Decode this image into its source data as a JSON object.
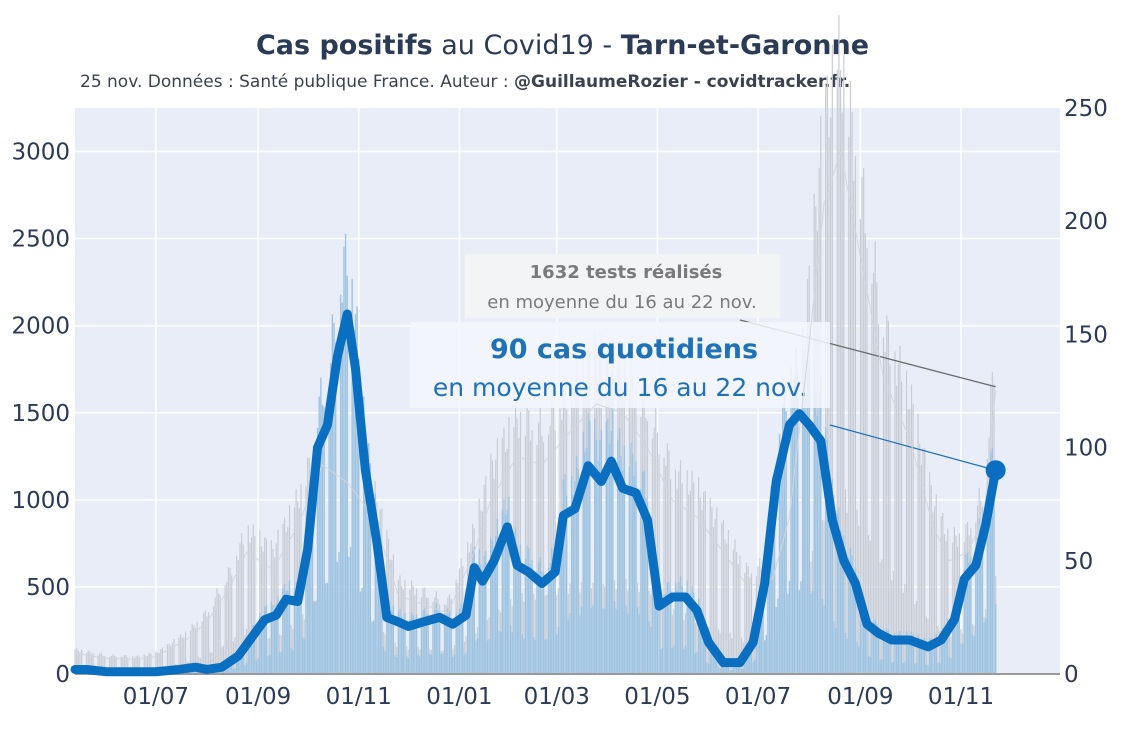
{
  "title": {
    "bold1": "Cas positifs",
    "normal": " au Covid19 - ",
    "bold2": "Tarn-et-Garonne"
  },
  "subtitle": {
    "text": "25 nov. Données : Santé publique France. Auteur : ",
    "bold": "@GuillaumeRozier - covidtracker.fr."
  },
  "annotations": {
    "tests_line1": "1632 tests réalisés",
    "tests_line2": "en moyenne du 16 au 22 nov.",
    "cases_line1": "90 cas quotidiens",
    "cases_line2": "en moyenne du 16 au 22 nov."
  },
  "colors": {
    "plot_bg": "#e8edf7",
    "grid": "#ffffff",
    "cases_line": "#0a6fc1",
    "cases_bars": "#9ec4e2",
    "tests_bars": "#c8ccd4",
    "text": "#2b3b55"
  },
  "chart_data": {
    "type": "line",
    "title": "Cas positifs au Covid19 - Tarn-et-Garonne",
    "x_axis": {
      "type": "date",
      "range": [
        "2020-05-13",
        "2021-12-31"
      ],
      "tick_labels": [
        "01/07",
        "01/09",
        "01/11",
        "01/01",
        "01/03",
        "01/05",
        "01/07",
        "01/09",
        "01/11"
      ],
      "tick_dates": [
        "2020-07-01",
        "2020-09-01",
        "2020-11-01",
        "2021-01-01",
        "2021-03-01",
        "2021-05-01",
        "2021-07-01",
        "2021-09-01",
        "2021-11-01"
      ]
    },
    "y_left": {
      "range": [
        0,
        3250
      ],
      "tick_labels": [
        "0",
        "500",
        "1000",
        "1500",
        "2000",
        "2500",
        "3000"
      ],
      "tick_values": [
        0,
        500,
        1000,
        1500,
        2000,
        2500,
        3000
      ],
      "series": "Tests réalisés (bars)"
    },
    "y_right": {
      "range": [
        0,
        250
      ],
      "tick_labels": [
        "0",
        "50",
        "100",
        "150",
        "200",
        "250"
      ],
      "tick_values": [
        0,
        50,
        100,
        150,
        200,
        250
      ],
      "series": "Cas positifs (line, bars)"
    },
    "grid": true,
    "series": [
      {
        "kind": "tests_7day_avg",
        "axis": "left",
        "x": [
          "2020-05-13",
          "2020-06-01",
          "2020-06-20",
          "2020-07-01",
          "2020-07-20",
          "2020-08-01",
          "2020-08-15",
          "2020-08-25",
          "2020-09-10",
          "2020-09-25",
          "2020-10-10",
          "2020-10-25",
          "2020-11-10",
          "2020-11-25",
          "2020-12-10",
          "2020-12-25",
          "2021-01-10",
          "2021-01-20",
          "2021-02-05",
          "2021-02-20",
          "2021-03-10",
          "2021-03-25",
          "2021-04-10",
          "2021-04-25",
          "2021-05-10",
          "2021-05-25",
          "2021-06-10",
          "2021-06-25",
          "2021-07-10",
          "2021-07-20",
          "2021-08-01",
          "2021-08-10",
          "2021-08-20",
          "2021-09-01",
          "2021-09-15",
          "2021-10-01",
          "2021-10-15",
          "2021-10-25",
          "2021-11-05",
          "2021-11-15",
          "2021-11-22"
        ],
        "y": [
          120,
          90,
          85,
          100,
          200,
          300,
          500,
          700,
          600,
          850,
          1200,
          1100,
          900,
          450,
          400,
          350,
          700,
          1000,
          1250,
          1200,
          1400,
          1550,
          1500,
          1300,
          1000,
          900,
          700,
          500,
          550,
          900,
          1900,
          2700,
          3000,
          2400,
          1700,
          1350,
          850,
          650,
          700,
          900,
          1632
        ]
      },
      {
        "kind": "cases_7day_avg",
        "axis": "right",
        "x": [
          "2020-05-13",
          "2020-05-20",
          "2020-06-01",
          "2020-06-15",
          "2020-07-01",
          "2020-07-15",
          "2020-07-25",
          "2020-08-01",
          "2020-08-10",
          "2020-08-20",
          "2020-08-28",
          "2020-09-05",
          "2020-09-12",
          "2020-09-18",
          "2020-09-25",
          "2020-10-01",
          "2020-10-07",
          "2020-10-13",
          "2020-10-19",
          "2020-10-25",
          "2020-10-30",
          "2020-11-05",
          "2020-11-12",
          "2020-11-18",
          "2020-11-25",
          "2020-12-01",
          "2020-12-10",
          "2020-12-20",
          "2020-12-28",
          "2021-01-05",
          "2021-01-10",
          "2021-01-15",
          "2021-01-22",
          "2021-01-30",
          "2021-02-05",
          "2021-02-12",
          "2021-02-20",
          "2021-02-28",
          "2021-03-05",
          "2021-03-12",
          "2021-03-20",
          "2021-03-28",
          "2021-04-03",
          "2021-04-10",
          "2021-04-18",
          "2021-04-25",
          "2021-05-02",
          "2021-05-10",
          "2021-05-18",
          "2021-05-25",
          "2021-06-01",
          "2021-06-10",
          "2021-06-20",
          "2021-06-28",
          "2021-07-05",
          "2021-07-12",
          "2021-07-20",
          "2021-07-26",
          "2021-08-01",
          "2021-08-08",
          "2021-08-15",
          "2021-08-22",
          "2021-08-29",
          "2021-09-05",
          "2021-09-12",
          "2021-09-20",
          "2021-10-01",
          "2021-10-12",
          "2021-10-20",
          "2021-10-28",
          "2021-11-03",
          "2021-11-10",
          "2021-11-16",
          "2021-11-22"
        ],
        "y": [
          2,
          2,
          1,
          1,
          1,
          2,
          3,
          2,
          3,
          8,
          16,
          24,
          26,
          33,
          32,
          55,
          100,
          110,
          140,
          159,
          135,
          90,
          58,
          25,
          23,
          21,
          23,
          25,
          22,
          26,
          47,
          41,
          50,
          65,
          48,
          45,
          40,
          45,
          70,
          73,
          92,
          85,
          94,
          82,
          80,
          68,
          30,
          34,
          34,
          28,
          14,
          5,
          5,
          14,
          40,
          85,
          110,
          115,
          110,
          103,
          68,
          50,
          40,
          22,
          18,
          15,
          15,
          12,
          15,
          24,
          42,
          48,
          66,
          90
        ]
      }
    ],
    "highlight_points": [
      {
        "series": "tests_7day_avg",
        "x": "2021-11-22",
        "y": 1632
      },
      {
        "series": "cases_7day_avg",
        "x": "2021-11-22",
        "y": 90
      }
    ]
  }
}
